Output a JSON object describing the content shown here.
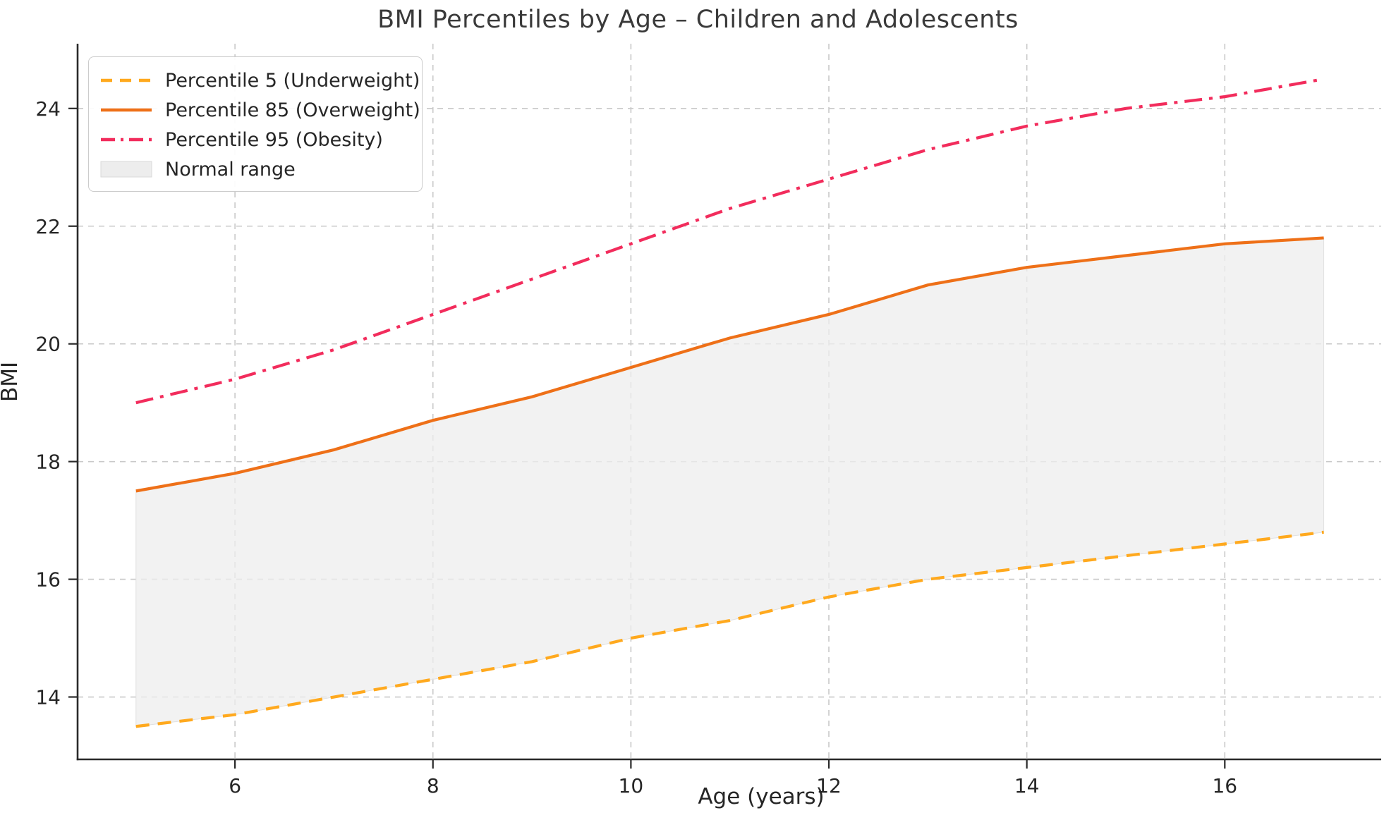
{
  "figure": {
    "title": "BMI Percentiles by Age – Children and Adolescents"
  },
  "chart_data": {
    "type": "line",
    "title": "BMI Percentiles by Age – Children and Adolescents",
    "xlabel": "Age (years)",
    "ylabel": "BMI",
    "x": [
      5,
      6,
      7,
      8,
      9,
      10,
      11,
      12,
      13,
      14,
      15,
      16,
      17
    ],
    "series": [
      {
        "name": "Percentile 5 (Underweight)",
        "style": "dashed",
        "color": "#FFA91E",
        "values": [
          13.5,
          13.7,
          14.0,
          14.3,
          14.6,
          15.0,
          15.3,
          15.7,
          16.0,
          16.2,
          16.4,
          16.6,
          16.8
        ]
      },
      {
        "name": "Percentile 85 (Overweight)",
        "style": "solid",
        "color": "#EE7018",
        "values": [
          17.5,
          17.8,
          18.2,
          18.7,
          19.1,
          19.6,
          20.1,
          20.5,
          21.0,
          21.3,
          21.5,
          21.7,
          21.8
        ]
      },
      {
        "name": "Percentile 95 (Obesity)",
        "style": "dashdot",
        "color": "#F22C5C",
        "values": [
          19.0,
          19.4,
          19.9,
          20.5,
          21.1,
          21.7,
          22.3,
          22.8,
          23.3,
          23.7,
          24.0,
          24.2,
          24.5
        ]
      }
    ],
    "band": {
      "label": "Normal range",
      "between": [
        "Percentile 5 (Underweight)",
        "Percentile 85 (Overweight)"
      ],
      "fill_color": "#ededed",
      "edge_color": "#e0e0e0"
    },
    "xticks": [
      6,
      8,
      10,
      12,
      14,
      16
    ],
    "yticks": [
      14,
      16,
      18,
      20,
      22,
      24
    ],
    "xlim": [
      4.41,
      17.58
    ],
    "ylim": [
      12.94,
      25.1
    ],
    "grid": true,
    "grid_color": "#c9c9c9",
    "spine_color": "#2a2a2a",
    "tick_label_color": "#262626",
    "legend_position": "upper left"
  }
}
